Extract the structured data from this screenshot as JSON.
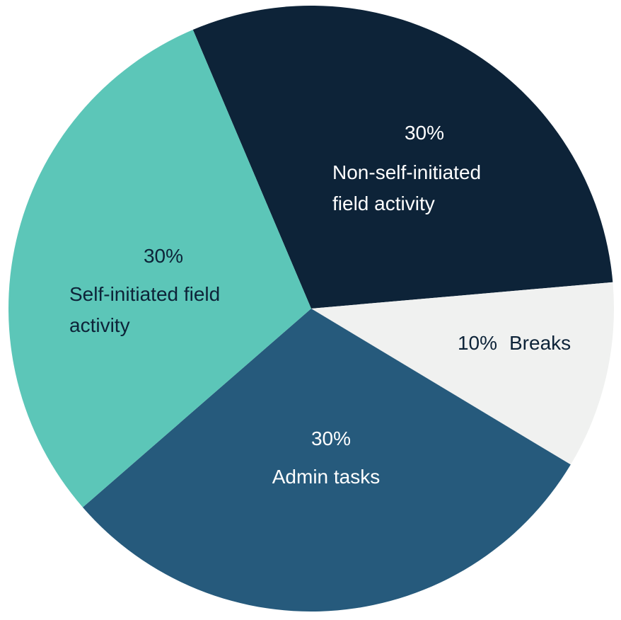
{
  "chart_data": {
    "type": "pie",
    "categories": [
      "Non-self-initiated field activity",
      "Breaks",
      "Admin tasks",
      "Self-initiated field activity"
    ],
    "values": [
      30,
      10,
      30,
      30
    ],
    "value_labels": [
      "30%",
      "10%",
      "30%",
      "30%"
    ],
    "colors": [
      "#0d2338",
      "#f0f1f0",
      "#265a7c",
      "#5cc6b8"
    ]
  }
}
